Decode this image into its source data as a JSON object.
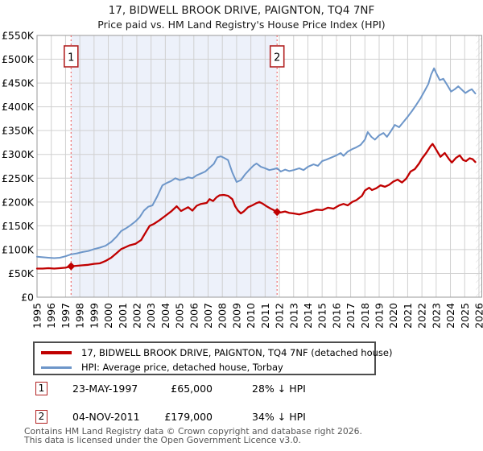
{
  "title": "17, BIDWELL BROOK DRIVE, PAIGNTON, TQ4 7NF",
  "subtitle": "Price paid vs. HM Land Registry's House Price Index (HPI)",
  "chart_data": {
    "type": "line",
    "title": "Price paid vs. HPI",
    "x_axis": {
      "min": 1995,
      "max": 2026.2,
      "ticks": [
        1995,
        1996,
        1997,
        1998,
        1999,
        2000,
        2001,
        2002,
        2003,
        2004,
        2005,
        2006,
        2007,
        2008,
        2009,
        2010,
        2011,
        2012,
        2013,
        2014,
        2015,
        2016,
        2017,
        2018,
        2019,
        2020,
        2021,
        2022,
        2023,
        2024,
        2025,
        2026
      ]
    },
    "y_axis": {
      "min_k": 0,
      "max_k": 550,
      "step_k": 50,
      "prefix": "£",
      "suffix": "K"
    },
    "colors": {
      "property": "#c00000",
      "hpi": "#6d96c9",
      "band": "#edf1fa",
      "grid": "#d0d0d0",
      "frame": "#999999",
      "sale_dash": "#ee7070",
      "badge_border": "#b22222",
      "hatch": "#bbbbbb"
    },
    "band": {
      "from": 1997.39,
      "to": 2011.84
    },
    "future_hatch_from": 2025.78,
    "sales": [
      {
        "label": "1",
        "x": 1997.39,
        "value_k": 65
      },
      {
        "label": "2",
        "x": 2011.84,
        "value_k": 179
      }
    ],
    "series": [
      {
        "name": "17, BIDWELL BROOK DRIVE, PAIGNTON, TQ4 7NF (detached house)",
        "color": "#c00000",
        "width": 2.3,
        "points": [
          [
            1995.0,
            60
          ],
          [
            1995.4,
            60
          ],
          [
            1995.8,
            61
          ],
          [
            1996.2,
            60
          ],
          [
            1996.6,
            61
          ],
          [
            1997.0,
            62
          ],
          [
            1997.39,
            65
          ],
          [
            1997.8,
            66
          ],
          [
            1998.2,
            67
          ],
          [
            1998.6,
            68
          ],
          [
            1999.0,
            70
          ],
          [
            1999.4,
            71
          ],
          [
            1999.8,
            76
          ],
          [
            2000.2,
            83
          ],
          [
            2000.6,
            93
          ],
          [
            2000.9,
            101
          ],
          [
            2001.2,
            105
          ],
          [
            2001.5,
            109
          ],
          [
            2001.9,
            112
          ],
          [
            2002.3,
            120
          ],
          [
            2002.6,
            135
          ],
          [
            2002.9,
            150
          ],
          [
            2003.2,
            154
          ],
          [
            2003.6,
            162
          ],
          [
            2004.0,
            171
          ],
          [
            2004.4,
            180
          ],
          [
            2004.8,
            191
          ],
          [
            2005.1,
            181
          ],
          [
            2005.4,
            186
          ],
          [
            2005.6,
            189
          ],
          [
            2005.9,
            182
          ],
          [
            2006.2,
            192
          ],
          [
            2006.5,
            196
          ],
          [
            2006.9,
            198
          ],
          [
            2007.1,
            206
          ],
          [
            2007.35,
            202
          ],
          [
            2007.6,
            210
          ],
          [
            2007.8,
            214
          ],
          [
            2008.1,
            215
          ],
          [
            2008.4,
            213
          ],
          [
            2008.7,
            206
          ],
          [
            2008.9,
            191
          ],
          [
            2009.1,
            182
          ],
          [
            2009.3,
            176
          ],
          [
            2009.5,
            180
          ],
          [
            2009.8,
            189
          ],
          [
            2010.1,
            193
          ],
          [
            2010.35,
            197
          ],
          [
            2010.6,
            200
          ],
          [
            2010.8,
            197
          ],
          [
            2011.1,
            191
          ],
          [
            2011.4,
            186
          ],
          [
            2011.6,
            183
          ],
          [
            2011.84,
            179
          ],
          [
            2012.1,
            178
          ],
          [
            2012.4,
            180
          ],
          [
            2012.7,
            177
          ],
          [
            2013.0,
            176
          ],
          [
            2013.4,
            174
          ],
          [
            2013.8,
            177
          ],
          [
            2014.2,
            180
          ],
          [
            2014.6,
            184
          ],
          [
            2015.0,
            183
          ],
          [
            2015.4,
            188
          ],
          [
            2015.8,
            186
          ],
          [
            2016.2,
            193
          ],
          [
            2016.5,
            196
          ],
          [
            2016.8,
            193
          ],
          [
            2017.1,
            200
          ],
          [
            2017.4,
            204
          ],
          [
            2017.8,
            213
          ],
          [
            2018.0,
            224
          ],
          [
            2018.3,
            230
          ],
          [
            2018.5,
            225
          ],
          [
            2018.8,
            229
          ],
          [
            2019.1,
            235
          ],
          [
            2019.4,
            232
          ],
          [
            2019.7,
            236
          ],
          [
            2020.0,
            243
          ],
          [
            2020.3,
            247
          ],
          [
            2020.6,
            241
          ],
          [
            2020.9,
            249
          ],
          [
            2021.2,
            264
          ],
          [
            2021.5,
            269
          ],
          [
            2021.8,
            281
          ],
          [
            2022.0,
            291
          ],
          [
            2022.3,
            303
          ],
          [
            2022.6,
            317
          ],
          [
            2022.75,
            322
          ],
          [
            2022.9,
            315
          ],
          [
            2023.1,
            305
          ],
          [
            2023.3,
            295
          ],
          [
            2023.6,
            303
          ],
          [
            2023.9,
            290
          ],
          [
            2024.1,
            283
          ],
          [
            2024.4,
            293
          ],
          [
            2024.65,
            298
          ],
          [
            2024.9,
            288
          ],
          [
            2025.1,
            286
          ],
          [
            2025.35,
            292
          ],
          [
            2025.55,
            290
          ],
          [
            2025.75,
            284
          ]
        ]
      },
      {
        "name": "HPI: Average price, detached house, Torbay",
        "color": "#6d96c9",
        "width": 2.0,
        "points": [
          [
            1995.0,
            85
          ],
          [
            1995.4,
            84
          ],
          [
            1995.8,
            83
          ],
          [
            1996.2,
            82
          ],
          [
            1996.6,
            83
          ],
          [
            1997.0,
            86
          ],
          [
            1997.39,
            90
          ],
          [
            1997.8,
            92
          ],
          [
            1998.2,
            95
          ],
          [
            1998.6,
            97
          ],
          [
            1999.0,
            101
          ],
          [
            1999.4,
            104
          ],
          [
            1999.8,
            108
          ],
          [
            2000.2,
            116
          ],
          [
            2000.6,
            128
          ],
          [
            2000.9,
            139
          ],
          [
            2001.2,
            144
          ],
          [
            2001.5,
            150
          ],
          [
            2001.9,
            159
          ],
          [
            2002.2,
            168
          ],
          [
            2002.5,
            182
          ],
          [
            2002.8,
            190
          ],
          [
            2003.1,
            193
          ],
          [
            2003.4,
            210
          ],
          [
            2003.8,
            235
          ],
          [
            2004.1,
            240
          ],
          [
            2004.4,
            244
          ],
          [
            2004.7,
            250
          ],
          [
            2005.0,
            246
          ],
          [
            2005.3,
            248
          ],
          [
            2005.6,
            252
          ],
          [
            2005.9,
            250
          ],
          [
            2006.2,
            256
          ],
          [
            2006.5,
            260
          ],
          [
            2006.8,
            264
          ],
          [
            2007.1,
            272
          ],
          [
            2007.4,
            280
          ],
          [
            2007.65,
            294
          ],
          [
            2007.9,
            296
          ],
          [
            2008.1,
            293
          ],
          [
            2008.4,
            288
          ],
          [
            2008.7,
            262
          ],
          [
            2009.0,
            242
          ],
          [
            2009.3,
            246
          ],
          [
            2009.6,
            258
          ],
          [
            2009.9,
            268
          ],
          [
            2010.2,
            277
          ],
          [
            2010.4,
            281
          ],
          [
            2010.7,
            274
          ],
          [
            2011.0,
            271
          ],
          [
            2011.3,
            267
          ],
          [
            2011.6,
            269
          ],
          [
            2011.84,
            271
          ],
          [
            2012.1,
            264
          ],
          [
            2012.4,
            268
          ],
          [
            2012.7,
            265
          ],
          [
            2013.0,
            267
          ],
          [
            2013.4,
            271
          ],
          [
            2013.7,
            267
          ],
          [
            2014.0,
            274
          ],
          [
            2014.4,
            279
          ],
          [
            2014.7,
            276
          ],
          [
            2015.0,
            286
          ],
          [
            2015.3,
            289
          ],
          [
            2015.6,
            293
          ],
          [
            2016.0,
            298
          ],
          [
            2016.3,
            303
          ],
          [
            2016.5,
            297
          ],
          [
            2016.8,
            306
          ],
          [
            2017.1,
            311
          ],
          [
            2017.4,
            315
          ],
          [
            2017.7,
            320
          ],
          [
            2018.0,
            331
          ],
          [
            2018.2,
            347
          ],
          [
            2018.45,
            337
          ],
          [
            2018.7,
            331
          ],
          [
            2019.0,
            340
          ],
          [
            2019.3,
            345
          ],
          [
            2019.55,
            337
          ],
          [
            2019.8,
            348
          ],
          [
            2020.1,
            362
          ],
          [
            2020.4,
            357
          ],
          [
            2020.7,
            368
          ],
          [
            2021.0,
            379
          ],
          [
            2021.3,
            391
          ],
          [
            2021.6,
            404
          ],
          [
            2021.9,
            418
          ],
          [
            2022.2,
            434
          ],
          [
            2022.45,
            448
          ],
          [
            2022.65,
            468
          ],
          [
            2022.85,
            481
          ],
          [
            2023.0,
            471
          ],
          [
            2023.25,
            456
          ],
          [
            2023.5,
            459
          ],
          [
            2023.75,
            447
          ],
          [
            2024.05,
            432
          ],
          [
            2024.3,
            437
          ],
          [
            2024.55,
            443
          ],
          [
            2024.8,
            436
          ],
          [
            2025.05,
            429
          ],
          [
            2025.3,
            434
          ],
          [
            2025.5,
            437
          ],
          [
            2025.75,
            428
          ]
        ]
      }
    ]
  },
  "legend": {
    "items": [
      {
        "label": "17, BIDWELL BROOK DRIVE, PAIGNTON, TQ4 7NF (detached house)",
        "color": "#c00000"
      },
      {
        "label": "HPI: Average price, detached house, Torbay",
        "color": "#6d96c9"
      }
    ]
  },
  "transactions": [
    {
      "num": "1",
      "date": "23-MAY-1997",
      "price": "£65,000",
      "vs_hpi": "28% ↓ HPI"
    },
    {
      "num": "2",
      "date": "04-NOV-2011",
      "price": "£179,000",
      "vs_hpi": "34% ↓ HPI"
    }
  ],
  "footer": {
    "line1": "Contains HM Land Registry data © Crown copyright and database right 2026.",
    "line2": "This data is licensed under the Open Government Licence v3.0."
  }
}
